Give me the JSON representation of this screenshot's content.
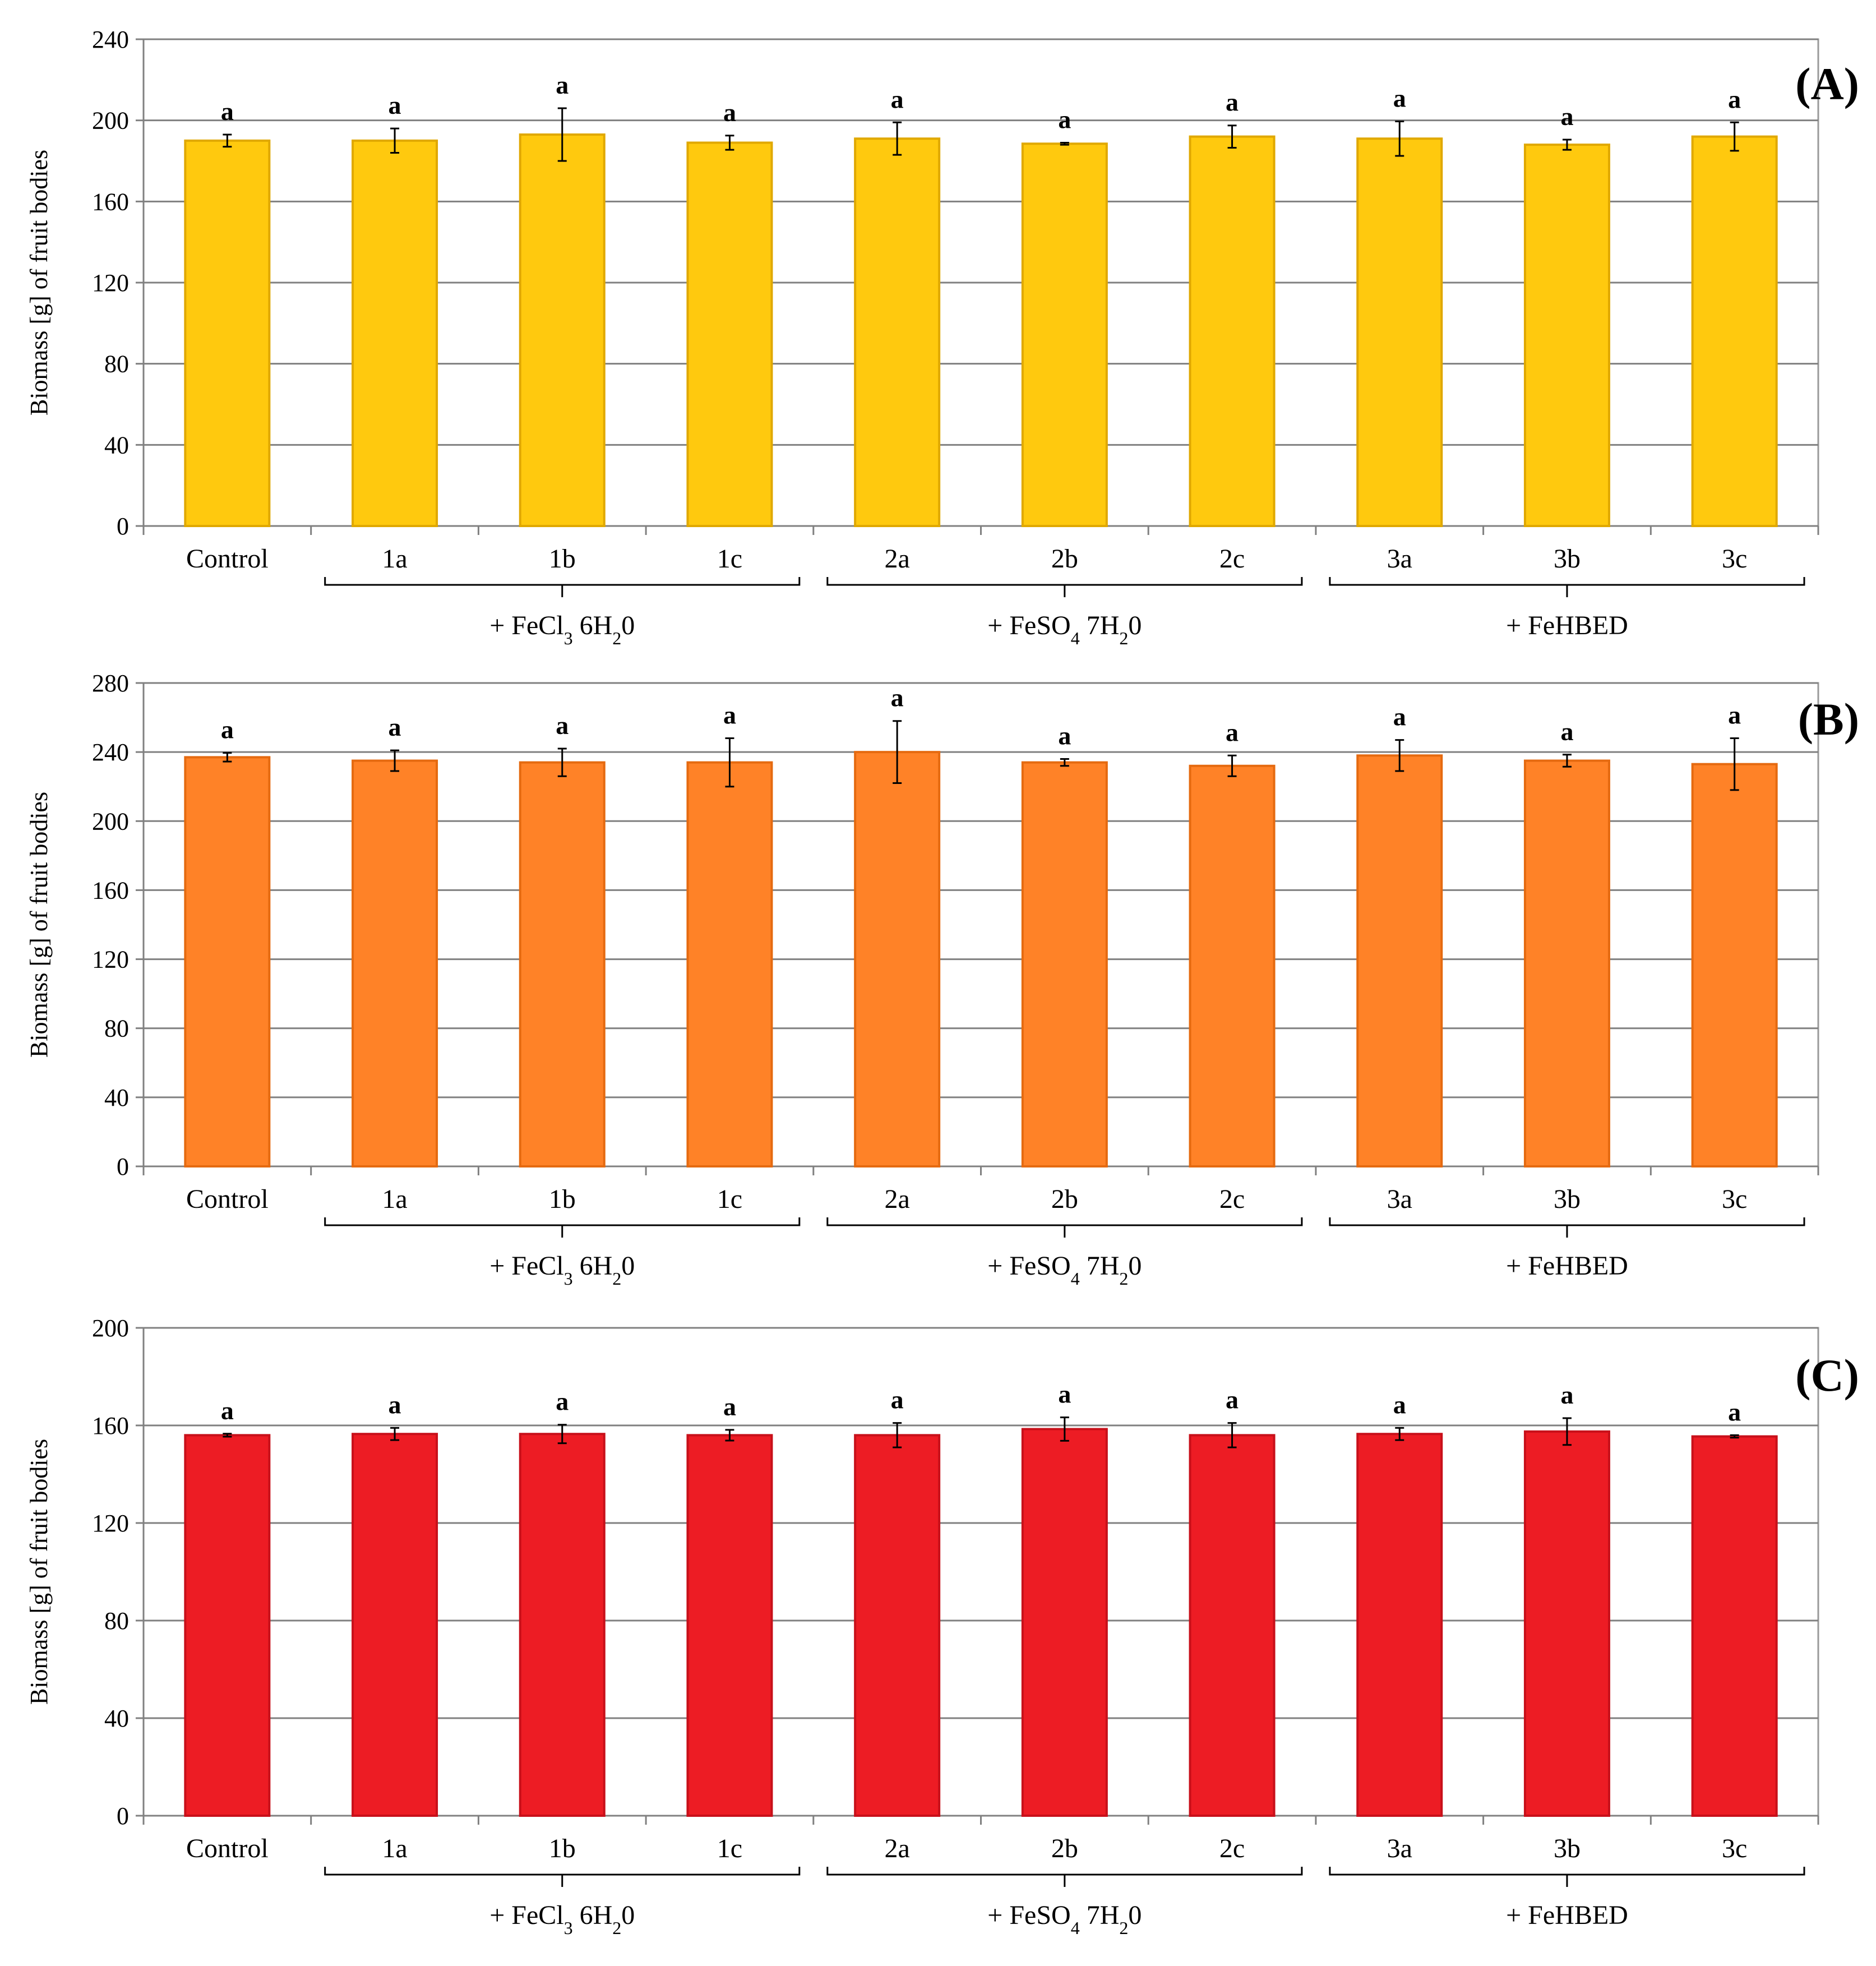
{
  "chart_data": [
    {
      "type": "bar",
      "panel_label": "(A)",
      "ylabel": "Biomass [g] of fruit bodies",
      "ylim": [
        0,
        240
      ],
      "yticks": [
        "0",
        "40",
        "80",
        "120",
        "160",
        "200",
        "240"
      ],
      "categories": [
        "Control",
        "1a",
        "1b",
        "1c",
        "2a",
        "2b",
        "2c",
        "3a",
        "3b",
        "3c"
      ],
      "values": [
        190,
        190,
        193,
        189,
        191,
        188.5,
        192,
        191,
        188,
        192
      ],
      "errors": [
        3,
        6,
        13,
        3.5,
        8,
        0.5,
        5.5,
        8.5,
        2.5,
        7
      ],
      "significance": [
        "a",
        "a",
        "a",
        "a",
        "a",
        "a",
        "a",
        "a",
        "a",
        "a"
      ],
      "bar_color": "#FFC90E",
      "bar_edge": "#E0A800",
      "groups": [
        {
          "prefix": "+ FeCl",
          "sub1": "3",
          "mid": " 6H",
          "sub2": "2",
          "suffix": "0"
        },
        {
          "prefix": "+ FeSO",
          "sub1": "4",
          "mid": " 7H",
          "sub2": "2",
          "suffix": "0"
        },
        {
          "prefix": "+ FeHBED",
          "sub1": "",
          "mid": "",
          "sub2": "",
          "suffix": ""
        }
      ]
    },
    {
      "type": "bar",
      "panel_label": "(B)",
      "ylabel": "Biomass [g] of fruit bodies",
      "ylim": [
        0,
        280
      ],
      "yticks": [
        "0",
        "40",
        "80",
        "120",
        "160",
        "200",
        "240",
        "280"
      ],
      "categories": [
        "Control",
        "1a",
        "1b",
        "1c",
        "2a",
        "2b",
        "2c",
        "3a",
        "3b",
        "3c"
      ],
      "values": [
        237,
        235,
        234,
        234,
        240,
        234,
        232,
        238,
        235,
        233
      ],
      "errors": [
        2.5,
        6,
        8,
        14,
        18,
        2,
        6,
        9,
        3.5,
        15
      ],
      "significance": [
        "a",
        "a",
        "a",
        "a",
        "a",
        "a",
        "a",
        "a",
        "a",
        "a"
      ],
      "bar_color": "#FF8227",
      "bar_edge": "#E56A10",
      "groups": [
        {
          "prefix": "+ FeCl",
          "sub1": "3",
          "mid": " 6H",
          "sub2": "2",
          "suffix": "0"
        },
        {
          "prefix": "+ FeSO",
          "sub1": "4",
          "mid": " 7H",
          "sub2": "2",
          "suffix": "0"
        },
        {
          "prefix": "+ FeHBED",
          "sub1": "",
          "mid": "",
          "sub2": "",
          "suffix": ""
        }
      ]
    },
    {
      "type": "bar",
      "panel_label": "(C)",
      "ylabel": "Biomass [g] of fruit bodies",
      "ylim": [
        0,
        200
      ],
      "yticks": [
        "0",
        "40",
        "80",
        "120",
        "160",
        "200"
      ],
      "categories": [
        "Control",
        "1a",
        "1b",
        "1c",
        "2a",
        "2b",
        "2c",
        "3a",
        "3b",
        "3c"
      ],
      "values": [
        156,
        156.5,
        156.5,
        156,
        156,
        158.5,
        156,
        156.5,
        157.5,
        155.5
      ],
      "errors": [
        0.6,
        2.5,
        3.8,
        2.2,
        5,
        4.8,
        5,
        2.5,
        5.5,
        0.5
      ],
      "significance": [
        "a",
        "a",
        "a",
        "a",
        "a",
        "a",
        "a",
        "a",
        "a",
        "a"
      ],
      "bar_color": "#ED1C24",
      "bar_edge": "#C8101A",
      "groups": [
        {
          "prefix": "+ FeCl",
          "sub1": "3",
          "mid": " 6H",
          "sub2": "2",
          "suffix": "0"
        },
        {
          "prefix": "+ FeSO",
          "sub1": "4",
          "mid": " 7H",
          "sub2": "2",
          "suffix": "0"
        },
        {
          "prefix": "+ FeHBED",
          "sub1": "",
          "mid": "",
          "sub2": "",
          "suffix": ""
        }
      ]
    }
  ]
}
